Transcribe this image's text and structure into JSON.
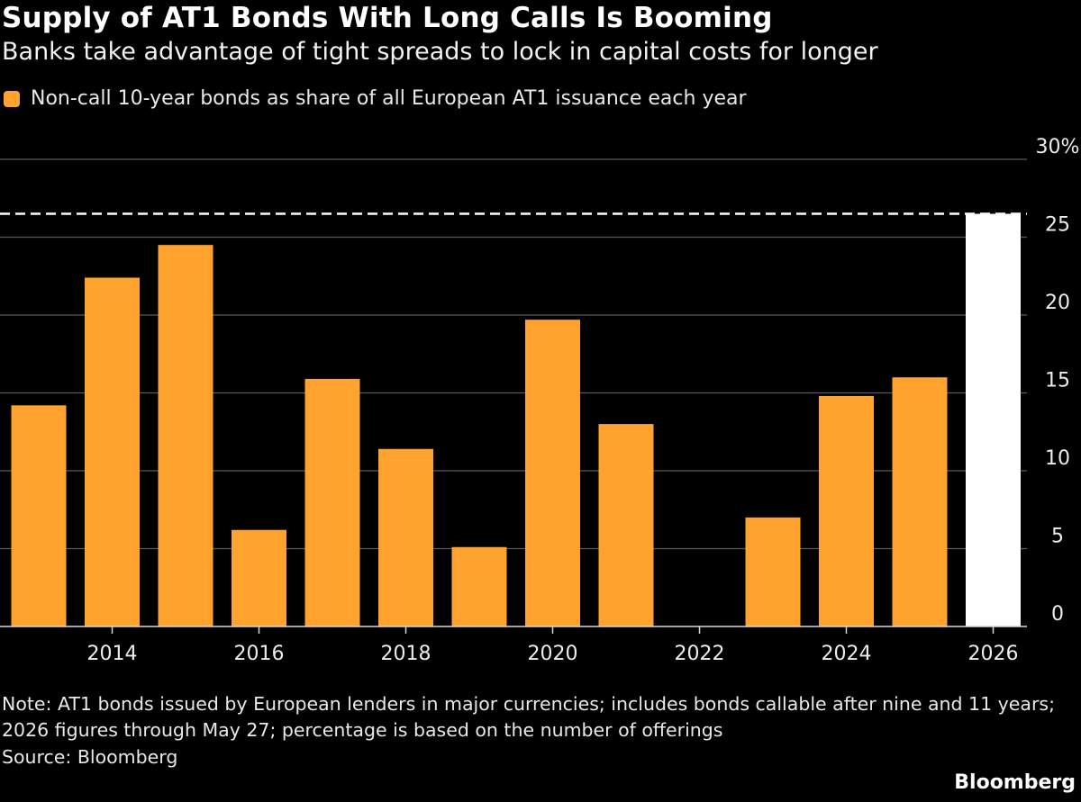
{
  "header": {
    "title": "Supply of AT1 Bonds With Long Calls Is Booming",
    "subtitle": "Banks take advantage of tight spreads to lock in capital costs for longer"
  },
  "legend": {
    "label": "Non-call 10-year bonds as share of all European AT1 issuance each year",
    "color": "#FFA22E"
  },
  "chart_data": {
    "type": "bar",
    "categories": [
      "2013",
      "2014",
      "2015",
      "2016",
      "2017",
      "2018",
      "2019",
      "2020",
      "2021",
      "2022",
      "2023",
      "2024",
      "2025",
      "2026"
    ],
    "series": [
      {
        "name": "Non-call 10-year bonds as share of all European AT1 issuance each year",
        "values": [
          14.2,
          22.4,
          24.5,
          6.2,
          15.9,
          11.4,
          5.1,
          19.7,
          13.0,
          0,
          7.0,
          14.8,
          16.0,
          26.5
        ]
      }
    ],
    "highlight_category": "2026",
    "highlight_color": "#FFFFFF",
    "bar_color": "#FFA22E",
    "reference_line": {
      "value": 26.5,
      "style": "dashed",
      "color": "#FFFFFF"
    },
    "x_tick_labels": [
      "2014",
      "2016",
      "2018",
      "2020",
      "2022",
      "2024",
      "2026"
    ],
    "y_ticks": [
      0,
      5,
      10,
      15,
      20,
      25,
      30
    ],
    "y_tick_labels": [
      "0",
      "5",
      "10",
      "15",
      "20",
      "25",
      "30%"
    ],
    "ylim": [
      0,
      30
    ],
    "y_axis_position": "right",
    "grid": true,
    "legend_position": "top-left"
  },
  "footer": {
    "note": "Note: AT1 bonds issued by European lenders in major currencies; includes bonds callable after nine and 11 years; 2026 figures through May 27; percentage is based on the number of offerings",
    "source": "Source: Bloomberg",
    "brand": "Bloomberg"
  }
}
